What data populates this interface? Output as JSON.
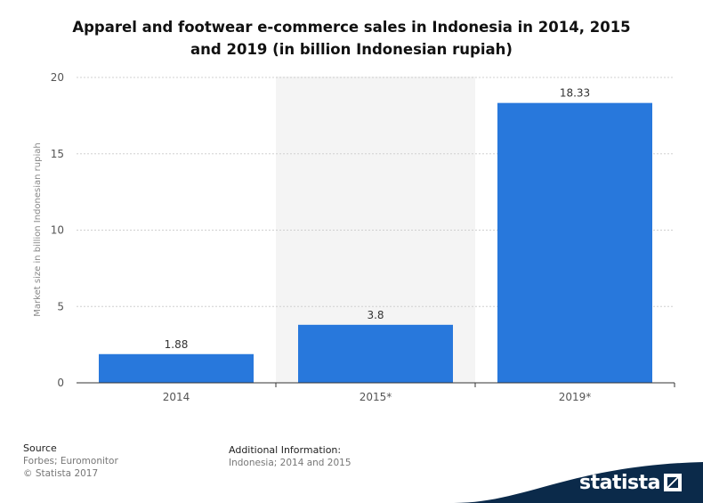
{
  "header": {
    "title_line1": "Apparel and footwear e-commerce sales in Indonesia in 2014, 2015",
    "title_line2": "and 2019 (in billion Indonesian rupiah)"
  },
  "chart_data": {
    "type": "bar",
    "categories": [
      "2014",
      "2015*",
      "2019*"
    ],
    "values": [
      1.88,
      3.8,
      18.33
    ],
    "value_labels": [
      "1.88",
      "3.8",
      "18.33"
    ],
    "ylabel": "Market size in billion Indonesian rupiah",
    "ylim": [
      0,
      20
    ],
    "yticks": [
      0,
      5,
      10,
      15,
      20
    ],
    "grid": true,
    "bar_color": "#2878dc"
  },
  "footer": {
    "source_heading": "Source",
    "source_lines": [
      "Forbes; Euromonitor",
      "© Statista 2017"
    ],
    "info_heading": "Additional Information:",
    "info_text": "Indonesia; 2014 and 2015"
  },
  "brand": {
    "name": "statista",
    "icon": "statista-logo-icon",
    "band_color": "#0b2a4a"
  }
}
